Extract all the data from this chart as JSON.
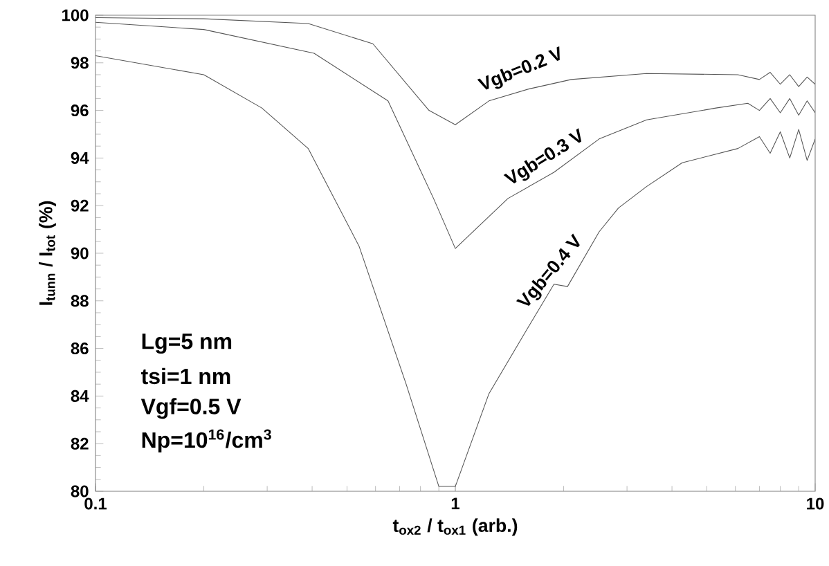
{
  "chart_data": {
    "type": "line",
    "xlabel": "t$_{ox2}$ / t$_{ox1}$  (arb.)",
    "ylabel": "I$_{tunn}$ / I$_{tot}$  (%)",
    "log": "x",
    "xlim": [
      0.1,
      10
    ],
    "xticks": [
      {
        "value": 0.1,
        "label": "0.1"
      },
      1,
      10
    ],
    "ylim": [
      80,
      100
    ],
    "yticks": [
      80,
      82,
      84,
      86,
      88,
      90,
      92,
      94,
      96,
      98,
      100
    ],
    "grid": false,
    "legend": false,
    "marker": "none",
    "line_style": "solid",
    "series": [
      {
        "name": "Vgb=0.2 V",
        "color": "#555555",
        "x": [
          0.1,
          0.2,
          0.39,
          0.59,
          0.845,
          1.0,
          1.24,
          1.6,
          2.1,
          3.4,
          6.1,
          7.0,
          7.5,
          8.0,
          8.5,
          9.0,
          9.5,
          10
        ],
        "values": [
          99.9,
          99.85,
          99.65,
          98.8,
          96.0,
          95.4,
          96.4,
          96.9,
          97.3,
          97.55,
          97.5,
          97.3,
          97.6,
          97.1,
          97.5,
          97.0,
          97.4,
          97.1
        ]
      },
      {
        "name": "Vgb=0.3 V",
        "color": "#555555",
        "x": [
          0.1,
          0.2,
          0.405,
          0.65,
          0.87,
          1.0,
          1.4,
          1.88,
          2.51,
          3.4,
          5.3,
          6.5,
          7.0,
          7.5,
          8.0,
          8.5,
          9.0,
          9.5,
          10
        ],
        "values": [
          99.7,
          99.4,
          98.4,
          96.4,
          92.3,
          90.2,
          92.3,
          93.4,
          94.8,
          95.6,
          96.1,
          96.3,
          96.0,
          96.5,
          95.9,
          96.5,
          95.8,
          96.4,
          95.9
        ]
      },
      {
        "name": "Vgb=0.4 V",
        "color": "#555555",
        "x": [
          0.1,
          0.2,
          0.29,
          0.39,
          0.54,
          0.73,
          0.9,
          1.0,
          1.24,
          1.61,
          1.88,
          2.05,
          2.51,
          2.84,
          3.4,
          4.27,
          6.1,
          7.0,
          7.5,
          8.0,
          8.5,
          9.0,
          9.5,
          10
        ],
        "values": [
          98.3,
          97.5,
          96.1,
          94.4,
          90.3,
          84.5,
          80.2,
          80.2,
          84.1,
          87.0,
          88.7,
          88.6,
          90.9,
          91.9,
          92.8,
          93.8,
          94.4,
          94.9,
          94.2,
          95.1,
          94.0,
          95.2,
          93.9,
          94.8
        ]
      }
    ],
    "annotations": [
      "Lg=5 nm",
      "tsi=1 nm",
      "Vgf=0.5 V",
      "Np=10$^{16}$/cm$^{3}$"
    ]
  }
}
